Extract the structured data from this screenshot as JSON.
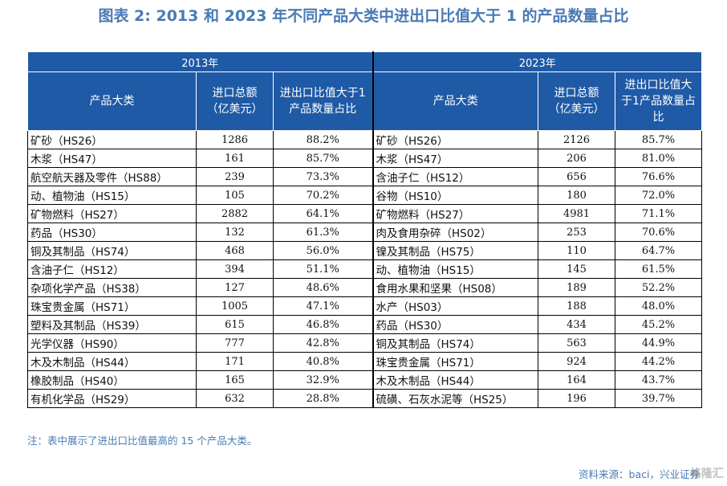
{
  "title": "图表 2:   2013 和 2023 年不同产品大类中进出口比值大于 1 的产品数量占比",
  "table": {
    "year_left": "2013年",
    "year_right": "2023年",
    "headers": [
      "产品大类",
      "进口总额（亿美元）",
      "进出口比值大于1产品数量占比"
    ],
    "rows_2013": [
      {
        "name": "矿砂（HS26）",
        "value": "1286",
        "pct": "88.2%"
      },
      {
        "name": "木浆（HS47）",
        "value": "161",
        "pct": "85.7%"
      },
      {
        "name": "航空航天器及零件（HS88）",
        "value": "239",
        "pct": "73.3%"
      },
      {
        "name": "动、植物油（HS15）",
        "value": "105",
        "pct": "70.2%"
      },
      {
        "name": "矿物燃料（HS27）",
        "value": "2882",
        "pct": "64.1%"
      },
      {
        "name": "药品（HS30）",
        "value": "132",
        "pct": "61.3%"
      },
      {
        "name": "铜及其制品（HS74）",
        "value": "468",
        "pct": "56.0%"
      },
      {
        "name": "含油子仁（HS12）",
        "value": "394",
        "pct": "51.1%"
      },
      {
        "name": "杂项化学产品（HS38）",
        "value": "127",
        "pct": "48.6%"
      },
      {
        "name": "珠宝贵金属（HS71）",
        "value": "1005",
        "pct": "47.1%"
      },
      {
        "name": "塑料及其制品（HS39）",
        "value": "615",
        "pct": "46.8%"
      },
      {
        "name": "光学仪器（HS90）",
        "value": "777",
        "pct": "42.8%"
      },
      {
        "name": "木及木制品（HS44）",
        "value": "171",
        "pct": "40.8%"
      },
      {
        "name": "橡胶制品（HS40）",
        "value": "165",
        "pct": "32.9%"
      },
      {
        "name": "有机化学品（HS29）",
        "value": "632",
        "pct": "28.8%"
      }
    ],
    "rows_2023": [
      {
        "name": "矿砂（HS26）",
        "value": "2126",
        "pct": "85.7%"
      },
      {
        "name": "木浆（HS47）",
        "value": "206",
        "pct": "81.0%"
      },
      {
        "name": "含油子仁（HS12）",
        "value": "656",
        "pct": "76.6%"
      },
      {
        "name": "谷物（HS10）",
        "value": "180",
        "pct": "72.0%"
      },
      {
        "name": "矿物燃料（HS27）",
        "value": "4981",
        "pct": "71.1%"
      },
      {
        "name": "肉及食用杂碎（HS02）",
        "value": "253",
        "pct": "70.6%"
      },
      {
        "name": "镍及其制品（HS75）",
        "value": "110",
        "pct": "64.7%"
      },
      {
        "name": "动、植物油（HS15）",
        "value": "145",
        "pct": "61.5%"
      },
      {
        "name": "食用水果和坚果（HS08）",
        "value": "189",
        "pct": "52.2%"
      },
      {
        "name": "水产（HS03）",
        "value": "188",
        "pct": "48.0%"
      },
      {
        "name": "药品（HS30）",
        "value": "434",
        "pct": "45.2%"
      },
      {
        "name": "铜及其制品（HS74）",
        "value": "563",
        "pct": "44.9%"
      },
      {
        "name": "珠宝贵金属（HS71）",
        "value": "924",
        "pct": "44.2%"
      },
      {
        "name": "木及木制品（HS44）",
        "value": "164",
        "pct": "43.7%"
      },
      {
        "name": "硫磺、石灰水泥等（HS25）",
        "value": "196",
        "pct": "39.7%"
      }
    ]
  },
  "note": "注：表中展示了进出口比值最高的 15 个产品大类。",
  "source": "资料来源：baci，兴业证券",
  "watermark": "格隆汇"
}
